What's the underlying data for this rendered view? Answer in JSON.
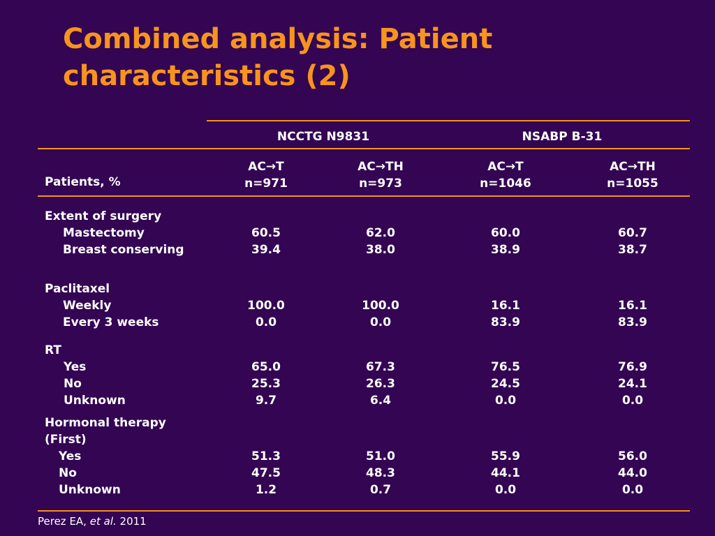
{
  "title": "Combined analysis: Patient characteristics (2)",
  "colors": {
    "background": "#330552",
    "accent": "#f7941d",
    "text": "#ffffff"
  },
  "table": {
    "groups": [
      "NCCTG N9831",
      "NSABP B-31"
    ],
    "row_header": "Patients, %",
    "columns": [
      {
        "arm": "AC→T",
        "n": "n=971"
      },
      {
        "arm": "AC→TH",
        "n": "n=973"
      },
      {
        "arm": "AC→T",
        "n": "n=1046"
      },
      {
        "arm": "AC→TH",
        "n": "n=1055"
      }
    ],
    "sections": [
      {
        "heading": "Extent of surgery",
        "rows": [
          {
            "label": "Mastectomy",
            "values": [
              "60.5",
              "62.0",
              "60.0",
              "60.7"
            ]
          },
          {
            "label": "Breast conserving",
            "values": [
              "39.4",
              "38.0",
              "38.9",
              "38.7"
            ]
          }
        ]
      },
      {
        "heading": "Paclitaxel",
        "rows": [
          {
            "label": "Weekly",
            "values": [
              "100.0",
              "100.0",
              "16.1",
              "16.1"
            ]
          },
          {
            "label": "Every 3 weeks",
            "values": [
              "0.0",
              "0.0",
              "83.9",
              "83.9"
            ]
          }
        ]
      },
      {
        "heading": "RT",
        "rows": [
          {
            "label": "Yes",
            "values": [
              "65.0",
              "67.3",
              "76.5",
              "76.9"
            ]
          },
          {
            "label": "No",
            "values": [
              "25.3",
              "26.3",
              "24.5",
              "24.1"
            ]
          },
          {
            "label": "Unknown",
            "values": [
              "9.7",
              "6.4",
              "0.0",
              "0.0"
            ]
          }
        ]
      },
      {
        "heading": "Hormonal therapy",
        "heading2": "(First)",
        "rows": [
          {
            "label": "Yes",
            "values": [
              "51.3",
              "51.0",
              "55.9",
              "56.0"
            ]
          },
          {
            "label": "No",
            "values": [
              "47.5",
              "48.3",
              "44.1",
              "44.0"
            ]
          },
          {
            "label": "Unknown",
            "values": [
              "1.2",
              "0.7",
              "0.0",
              "0.0"
            ]
          }
        ]
      }
    ]
  },
  "footer": {
    "author": "Perez EA,",
    "etal": "et al.",
    "year": "2011"
  }
}
